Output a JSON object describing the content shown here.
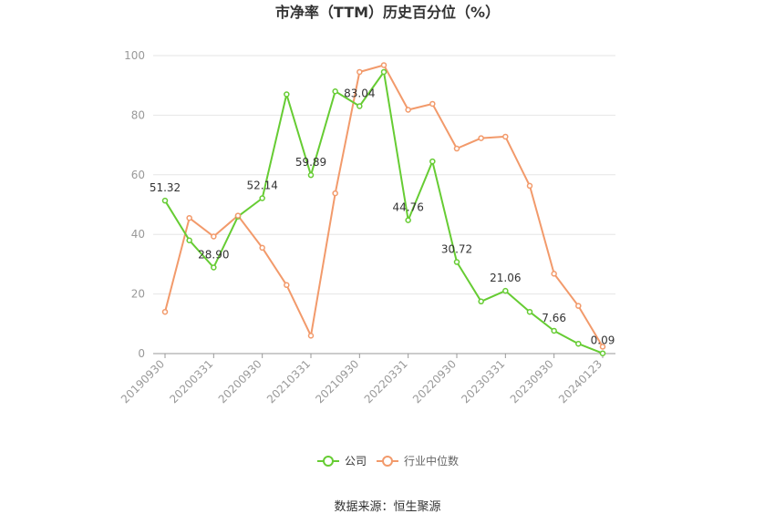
{
  "chart_data": {
    "type": "line",
    "title": "市净率（TTM）历史百分位（%）",
    "ylim": [
      0,
      100
    ],
    "yticks": [
      0,
      20,
      40,
      60,
      80,
      100
    ],
    "x_labels": [
      "20190930",
      "20200331",
      "20200930",
      "20210331",
      "20210930",
      "20220331",
      "20220930",
      "20230331",
      "20230930",
      "20240123"
    ],
    "series": [
      {
        "name": "公司",
        "color": "#66cc33",
        "values": [
          51.32,
          38.0,
          28.9,
          46.0,
          52.14,
          87.0,
          59.89,
          88.0,
          83.04,
          94.5,
          44.76,
          64.5,
          30.72,
          17.5,
          21.06,
          14.0,
          7.66,
          3.3,
          0.09
        ]
      },
      {
        "name": "行业中位数",
        "color": "#f29a6b",
        "values": [
          14.0,
          45.5,
          39.3,
          46.3,
          35.5,
          23.0,
          6.0,
          53.8,
          94.5,
          96.8,
          81.8,
          83.8,
          68.8,
          72.3,
          72.8,
          56.3,
          26.8,
          16.0,
          2.3
        ]
      }
    ],
    "data_labels": [
      {
        "series": 0,
        "index": 0,
        "text": "51.32"
      },
      {
        "series": 0,
        "index": 2,
        "text": "28.90"
      },
      {
        "series": 0,
        "index": 4,
        "text": "52.14"
      },
      {
        "series": 0,
        "index": 6,
        "text": "59.89"
      },
      {
        "series": 0,
        "index": 8,
        "text": "83.04"
      },
      {
        "series": 0,
        "index": 10,
        "text": "44.76"
      },
      {
        "series": 0,
        "index": 12,
        "text": "30.72"
      },
      {
        "series": 0,
        "index": 14,
        "text": "21.06"
      },
      {
        "series": 0,
        "index": 16,
        "text": "7.66"
      },
      {
        "series": 0,
        "index": 18,
        "text": "0.09"
      }
    ],
    "grid": true,
    "legend_position": "bottom"
  },
  "source_text": "数据来源：恒生聚源"
}
